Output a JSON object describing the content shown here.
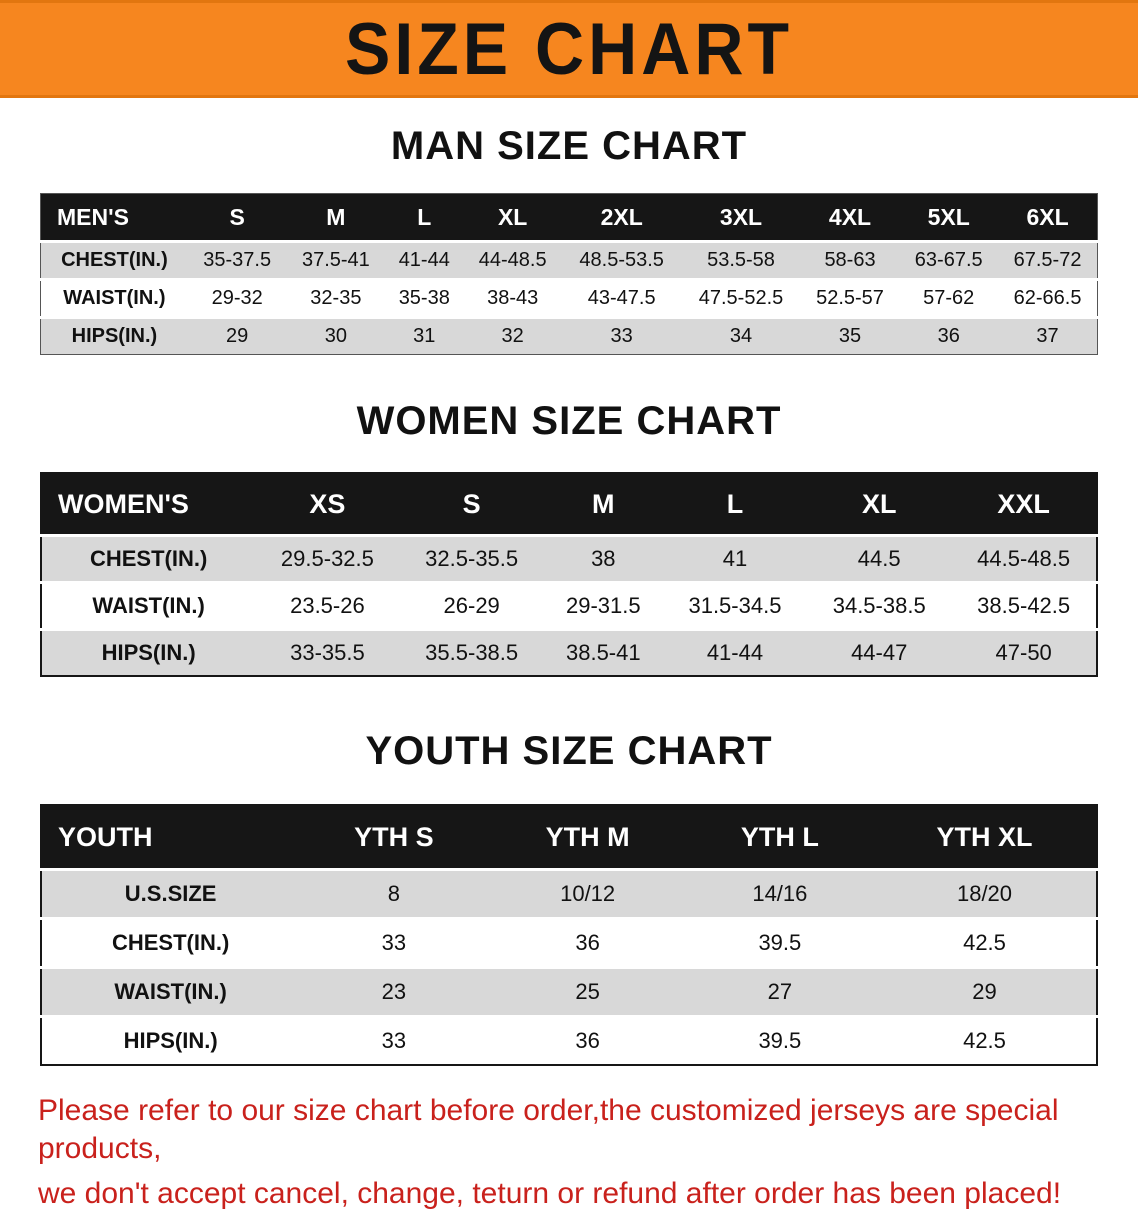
{
  "banner": {
    "title": "SIZE CHART",
    "background_color": "#f6861f",
    "text_color": "#141414"
  },
  "sections": [
    {
      "heading": "MAN SIZE CHART",
      "table": {
        "header": [
          "MEN'S",
          "S",
          "M",
          "L",
          "XL",
          "2XL",
          "3XL",
          "4XL",
          "5XL",
          "6XL"
        ],
        "rows": [
          [
            "CHEST(IN.)",
            "35-37.5",
            "37.5-41",
            "41-44",
            "44-48.5",
            "48.5-53.5",
            "53.5-58",
            "58-63",
            "63-67.5",
            "67.5-72"
          ],
          [
            "WAIST(IN.)",
            "29-32",
            "32-35",
            "35-38",
            "38-43",
            "43-47.5",
            "47.5-52.5",
            "52.5-57",
            "57-62",
            "62-66.5"
          ],
          [
            "HIPS(IN.)",
            "29",
            "30",
            "31",
            "32",
            "33",
            "34",
            "35",
            "36",
            "37"
          ]
        ]
      }
    },
    {
      "heading": "WOMEN SIZE CHART",
      "table": {
        "header": [
          "WOMEN'S",
          "XS",
          "S",
          "M",
          "L",
          "XL",
          "XXL"
        ],
        "rows": [
          [
            "CHEST(IN.)",
            "29.5-32.5",
            "32.5-35.5",
            "38",
            "41",
            "44.5",
            "44.5-48.5"
          ],
          [
            "WAIST(IN.)",
            "23.5-26",
            "26-29",
            "29-31.5",
            "31.5-34.5",
            "34.5-38.5",
            "38.5-42.5"
          ],
          [
            "HIPS(IN.)",
            "33-35.5",
            "35.5-38.5",
            "38.5-41",
            "41-44",
            "44-47",
            "47-50"
          ]
        ]
      }
    },
    {
      "heading": "YOUTH SIZE CHART",
      "table": {
        "header": [
          "YOUTH",
          "YTH S",
          "YTH M",
          "YTH L",
          "YTH XL"
        ],
        "rows": [
          [
            "U.S.SIZE",
            "8",
            "10/12",
            "14/16",
            "18/20"
          ],
          [
            "CHEST(IN.)",
            "33",
            "36",
            "39.5",
            "42.5"
          ],
          [
            "WAIST(IN.)",
            "23",
            "25",
            "27",
            "29"
          ],
          [
            "HIPS(IN.)",
            "33",
            "36",
            "39.5",
            "42.5"
          ]
        ]
      }
    }
  ],
  "footer": {
    "text_color": "#c9211c",
    "lines": [
      "Please refer to our size chart before order,the customized jerseys are special products,",
      "we don't accept cancel, change, teturn or refund after order has been placed!"
    ]
  }
}
